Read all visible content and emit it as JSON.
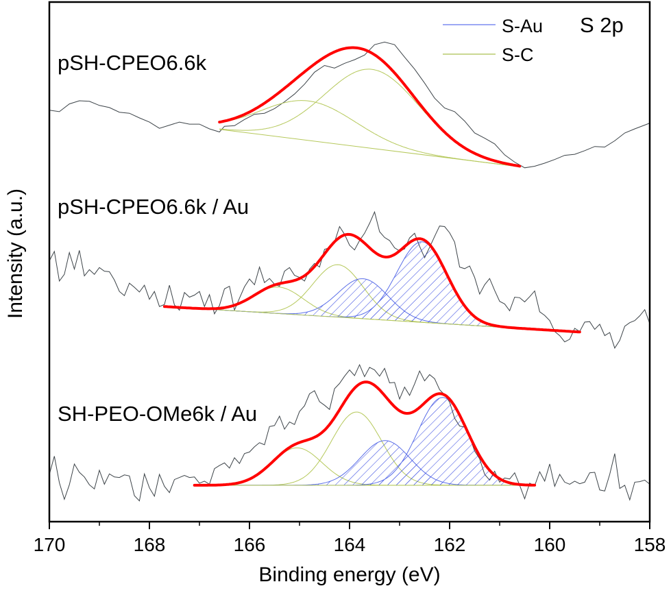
{
  "chart_data": {
    "type": "line",
    "title": "S 2p",
    "xlabel": "Binding energy (eV)",
    "ylabel": "Intensity (a.u.)",
    "xlim": [
      170,
      158
    ],
    "ylim": [
      0,
      100
    ],
    "x_reversed": true,
    "xticks_major": [
      170,
      168,
      166,
      164,
      162,
      160,
      158
    ],
    "xtick_labels": [
      "170",
      "168",
      "166",
      "164",
      "162",
      "160",
      "158"
    ],
    "xticks_minor": [
      169,
      167,
      165,
      163,
      161,
      159
    ],
    "yticks": [],
    "grid": false,
    "legend": {
      "placement": "top-right",
      "entries": [
        {
          "label": "S-Au",
          "color": "#7b8cf0",
          "style": "line"
        },
        {
          "label": "S-C",
          "color": "#b9cc6e",
          "style": "line"
        }
      ]
    },
    "colors": {
      "raw": "#3c4348",
      "envelope": "#ff0000",
      "s_au": "#5a6ee8",
      "s_au_hatch": "#2a3ee0",
      "s_c": "#b5c85a",
      "frame": "#000000"
    },
    "spectra": [
      {
        "name": "pSH-CPEO6.6k",
        "label": "pSH-CPEO6.6k",
        "raw_data": {
          "x": [
            170.0,
            169.8,
            169.6,
            169.4,
            169.2,
            169.0,
            168.8,
            168.6,
            168.4,
            168.2,
            168.0,
            167.8,
            167.6,
            167.4,
            167.2,
            167.0,
            166.8,
            166.6,
            166.5,
            166.3,
            166.1,
            165.9,
            165.7,
            165.5,
            165.3,
            165.1,
            164.9,
            164.7,
            164.5,
            164.3,
            164.1,
            163.9,
            163.7,
            163.5,
            163.3,
            163.1,
            162.9,
            162.7,
            162.5,
            162.3,
            162.1,
            161.9,
            161.7,
            161.5,
            161.3,
            161.1,
            160.9,
            160.7,
            160.5,
            160.3,
            160.1,
            159.9,
            159.7,
            159.5,
            159.3,
            159.1,
            158.9,
            158.7,
            158.5,
            158.3,
            158.0
          ],
          "y": [
            79.2,
            78.9,
            80.4,
            81.0,
            80.9,
            80.1,
            79.7,
            78.8,
            78.6,
            77.7,
            76.9,
            75.7,
            76.3,
            76.9,
            76.5,
            76.5,
            75.6,
            75.0,
            76.1,
            76.2,
            77.4,
            78.4,
            78.6,
            79.5,
            80.8,
            82.3,
            84.2,
            86.5,
            87.8,
            87.3,
            88.2,
            88.9,
            89.8,
            91.8,
            92.3,
            91.8,
            89.4,
            87.1,
            84.4,
            81.5,
            79.6,
            78.9,
            77.1,
            74.8,
            73.8,
            72.7,
            70.6,
            69.2,
            68.1,
            68.4,
            69.0,
            69.7,
            70.5,
            70.7,
            71.4,
            72.2,
            72.1,
            73.3,
            74.8,
            75.6,
            76.7
          ]
        },
        "background": {
          "x": [
            166.6,
            160.6
          ],
          "y": [
            75.5,
            68.3
          ]
        },
        "fit_range": [
          166.6,
          160.6
        ],
        "components": [
          {
            "type": "S-C",
            "center": 164.82,
            "amplitude": 7.6,
            "sigma": 0.95
          },
          {
            "type": "S-C",
            "center": 163.55,
            "amplitude": 15.2,
            "sigma": 0.95
          }
        ]
      },
      {
        "name": "pSH-CPEO6.6k / Au",
        "label": "pSH-CPEO6.6k / Au",
        "raw_data": {
          "x": [
            170.0,
            169.9,
            169.8,
            169.7,
            169.6,
            169.5,
            169.4,
            169.3,
            169.2,
            169.1,
            169.0,
            168.9,
            168.8,
            168.7,
            168.6,
            168.5,
            168.4,
            168.3,
            168.2,
            168.1,
            168.0,
            167.9,
            167.8,
            167.7,
            167.6,
            167.5,
            167.4,
            167.3,
            167.2,
            167.1,
            167.0,
            166.9,
            166.8,
            166.7,
            166.6,
            166.5,
            166.4,
            166.3,
            166.2,
            166.1,
            166.0,
            165.9,
            165.8,
            165.7,
            165.6,
            165.5,
            165.4,
            165.3,
            165.2,
            165.1,
            165.0,
            164.9,
            164.8,
            164.7,
            164.6,
            164.5,
            164.4,
            164.3,
            164.2,
            164.1,
            164.0,
            163.9,
            163.8,
            163.7,
            163.6,
            163.5,
            163.4,
            163.3,
            163.2,
            163.1,
            163.0,
            162.9,
            162.8,
            162.7,
            162.6,
            162.5,
            162.4,
            162.3,
            162.2,
            162.1,
            162.0,
            161.9,
            161.8,
            161.7,
            161.6,
            161.5,
            161.4,
            161.3,
            161.2,
            161.1,
            161.0,
            160.9,
            160.8,
            160.7,
            160.6,
            160.5,
            160.4,
            160.3,
            160.2,
            160.1,
            160.0,
            159.9,
            159.8,
            159.7,
            159.6,
            159.5,
            159.4,
            159.3,
            159.2,
            159.1,
            159.0,
            158.9,
            158.8,
            158.7,
            158.6,
            158.5,
            158.4,
            158.3,
            158.2,
            158.1,
            158.0
          ],
          "y": [
            50.2,
            52.0,
            46.3,
            47.6,
            51.8,
            48.6,
            52.2,
            47.3,
            48.5,
            47.6,
            48.9,
            48.2,
            48.1,
            46.5,
            44.3,
            43.5,
            45.9,
            45.1,
            44.2,
            45.5,
            42.8,
            44.3,
            41.4,
            41.8,
            45.5,
            41.7,
            40.7,
            44.1,
            43.2,
            43.6,
            44.3,
            41.4,
            43.7,
            40.0,
            41.6,
            44.8,
            45.3,
            40.7,
            43.0,
            45.2,
            46.7,
            45.6,
            49.0,
            46.0,
            46.8,
            45.7,
            45.3,
            48.2,
            48.9,
            47.4,
            47.0,
            46.3,
            48.6,
            49.7,
            49.0,
            52.4,
            52.7,
            53.8,
            56.8,
            55.3,
            53.2,
            52.3,
            54.1,
            55.5,
            57.4,
            59.6,
            55.8,
            54.7,
            54.1,
            52.7,
            52.1,
            52.5,
            54.6,
            55.5,
            53.0,
            50.8,
            52.8,
            54.9,
            56.9,
            56.8,
            55.6,
            53.8,
            49.0,
            48.7,
            49.2,
            47.0,
            43.8,
            45.6,
            46.8,
            44.5,
            42.4,
            41.9,
            40.6,
            43.2,
            43.1,
            42.3,
            43.3,
            44.4,
            40.4,
            39.7,
            38.7,
            36.6,
            35.8,
            34.6,
            35.1,
            37.2,
            36.6,
            38.4,
            38.5,
            37.0,
            38.0,
            35.8,
            36.4,
            33.4,
            34.9,
            37.6,
            38.3,
            38.7,
            39.6,
            40.8,
            38.1
          ]
        },
        "background": {
          "x": [
            167.7,
            159.4
          ],
          "y": [
            41.4,
            36.5
          ]
        },
        "fit_range": [
          167.7,
          159.4
        ],
        "components": [
          {
            "type": "S-C",
            "center": 165.42,
            "amplitude": 5.1,
            "sigma": 0.5
          },
          {
            "type": "S-C",
            "center": 164.23,
            "amplitude": 10.1,
            "sigma": 0.5
          },
          {
            "type": "S-Au",
            "center": 163.73,
            "amplitude": 7.7,
            "sigma": 0.5
          },
          {
            "type": "S-Au",
            "center": 162.55,
            "amplitude": 15.5,
            "sigma": 0.5
          }
        ]
      },
      {
        "name": "SH-PEO-OMe6k / Au",
        "label": "SH-PEO-OMe6k / Au",
        "raw_data": {
          "x": [
            170.0,
            169.9,
            169.8,
            169.7,
            169.6,
            169.5,
            169.4,
            169.3,
            169.2,
            169.1,
            169.0,
            168.9,
            168.8,
            168.7,
            168.6,
            168.5,
            168.4,
            168.3,
            168.2,
            168.1,
            168.0,
            167.9,
            167.8,
            167.7,
            167.6,
            167.5,
            167.4,
            167.3,
            167.2,
            167.1,
            167.0,
            166.9,
            166.8,
            166.7,
            166.6,
            166.5,
            166.4,
            166.3,
            166.2,
            166.1,
            166.0,
            165.9,
            165.8,
            165.7,
            165.6,
            165.5,
            165.4,
            165.3,
            165.2,
            165.1,
            165.0,
            164.9,
            164.8,
            164.7,
            164.6,
            164.5,
            164.4,
            164.3,
            164.2,
            164.1,
            164.0,
            163.9,
            163.8,
            163.7,
            163.6,
            163.5,
            163.4,
            163.3,
            163.2,
            163.1,
            163.0,
            162.9,
            162.8,
            162.7,
            162.6,
            162.5,
            162.4,
            162.3,
            162.2,
            162.1,
            162.0,
            161.9,
            161.8,
            161.7,
            161.6,
            161.5,
            161.4,
            161.3,
            161.2,
            161.1,
            161.0,
            160.9,
            160.8,
            160.7,
            160.6,
            160.5,
            160.4,
            160.3,
            160.2,
            160.1,
            160.0,
            159.9,
            159.8,
            159.7,
            159.6,
            159.5,
            159.4,
            159.3,
            159.2,
            159.1,
            159.0,
            158.9,
            158.8,
            158.7,
            158.6,
            158.5,
            158.4,
            158.3,
            158.2,
            158.1,
            158.0
          ],
          "y": [
            9.1,
            12.6,
            7.5,
            4.3,
            7.1,
            11.1,
            9.5,
            8.6,
            7.1,
            6.3,
            9.9,
            7.2,
            9.2,
            8.6,
            8.5,
            9.0,
            8.8,
            5.0,
            4.0,
            9.2,
            6.5,
            4.9,
            9.1,
            6.8,
            5.6,
            8.1,
            8.5,
            8.9,
            8.5,
            8.6,
            7.4,
            7.8,
            7.2,
            10.2,
            10.8,
            11.3,
            10.3,
            12.3,
            11.2,
            13.1,
            13.4,
            14.4,
            15.2,
            14.8,
            18.3,
            18.5,
            20.3,
            17.8,
            19.2,
            18.7,
            21.2,
            22.3,
            24.6,
            25.2,
            23.1,
            22.4,
            21.6,
            25.6,
            26.6,
            28.0,
            29.2,
            28.1,
            30.2,
            27.9,
            29.7,
            29.2,
            28.0,
            29.5,
            26.7,
            26.8,
            23.6,
            25.9,
            24.3,
            26.5,
            29.0,
            27.1,
            28.3,
            27.5,
            25.4,
            24.4,
            23.0,
            19.9,
            18.4,
            18.2,
            16.3,
            13.6,
            12.1,
            9.1,
            8.0,
            9.7,
            7.6,
            8.4,
            8.2,
            9.4,
            7.0,
            4.4,
            7.4,
            6.9,
            9.6,
            7.8,
            11.1,
            6.8,
            9.1,
            7.6,
            7.2,
            7.8,
            7.3,
            7.6,
            9.4,
            9.5,
            6.1,
            5.9,
            9.1,
            13.1,
            6.4,
            7.0,
            4.2,
            7.6,
            7.7,
            8.0,
            7.2
          ]
        },
        "background": {
          "x": [
            167.1,
            160.3
          ],
          "y": [
            7.0,
            7.0
          ]
        },
        "fit_range": [
          167.1,
          160.3
        ],
        "components": [
          {
            "type": "S-C",
            "center": 165.05,
            "amplitude": 7.2,
            "sigma": 0.5
          },
          {
            "type": "S-C",
            "center": 163.86,
            "amplitude": 14.1,
            "sigma": 0.5
          },
          {
            "type": "S-Au",
            "center": 163.29,
            "amplitude": 8.6,
            "sigma": 0.5
          },
          {
            "type": "S-Au",
            "center": 162.14,
            "amplitude": 16.9,
            "sigma": 0.5
          }
        ]
      }
    ]
  }
}
